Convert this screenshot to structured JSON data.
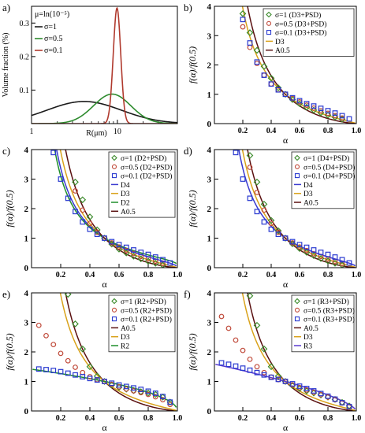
{
  "figure": {
    "panels": [
      {
        "id": "a",
        "label": "a)",
        "xlabel": "R(μm)",
        "ylabel": "Volume fraction (%)",
        "xticks": [
          "1",
          "10"
        ],
        "yticks": [
          "0.1",
          "0.2",
          "0.3"
        ],
        "legend_title": "μ=ln(10⁻⁵)"
      },
      {
        "id": "b",
        "label": "b)",
        "xlabel": "α",
        "ylabel": "f(α)/f(0.5)"
      },
      {
        "id": "c",
        "label": "c)",
        "xlabel": "α",
        "ylabel": "f(α)/f(0.5)"
      },
      {
        "id": "d",
        "label": "d)",
        "xlabel": "α",
        "ylabel": "f(α)/f(0.5)"
      },
      {
        "id": "e",
        "label": "e)",
        "xlabel": "α",
        "ylabel": "f(α)/f(0.5)"
      },
      {
        "id": "f",
        "label": "f)",
        "xlabel": "α",
        "ylabel": "f(α)/f(0.5)"
      }
    ],
    "alpha_ticks": [
      "0.2",
      "0.4",
      "0.6",
      "0.8",
      "1.0"
    ],
    "f_ticks": [
      "0",
      "1",
      "2",
      "3",
      "4"
    ]
  },
  "chart_data": [
    {
      "panel": "a",
      "type": "line",
      "xscale": "log",
      "xlim": [
        1,
        50
      ],
      "ylim": [
        0,
        0.35
      ],
      "legend_title": "μ=ln(10⁻⁵)",
      "series": [
        {
          "name": "σ=1",
          "color": "#1a1a1a",
          "peak_x": 4.1,
          "peak_y": 0.066,
          "sigma": 1
        },
        {
          "name": "σ=0.5",
          "color": "#2e8b2e",
          "peak_x": 8.7,
          "peak_y": 0.088,
          "sigma": 0.5
        },
        {
          "name": "σ=0.1",
          "color": "#b03a2e",
          "peak_x": 9.9,
          "peak_y": 0.345,
          "sigma": 0.1
        }
      ]
    },
    {
      "panel": "b",
      "type": "scatter",
      "xlim": [
        0,
        1
      ],
      "ylim": [
        0,
        4
      ],
      "series": [
        {
          "name": "σ=1 (D3+PSD)",
          "kind": "scatter",
          "marker": "diamond",
          "color": "#3a8a2a",
          "x": [
            0.2,
            0.25,
            0.3,
            0.35,
            0.4,
            0.45,
            0.5,
            0.55,
            0.6,
            0.65,
            0.7,
            0.75,
            0.8,
            0.85,
            0.9
          ],
          "y": [
            3.75,
            3.1,
            2.5,
            1.95,
            1.55,
            1.22,
            1.0,
            0.82,
            0.68,
            0.56,
            0.46,
            0.37,
            0.29,
            0.22,
            0.15
          ]
        },
        {
          "name": "σ=0.5 (D3+PSD)",
          "kind": "scatter",
          "marker": "circle",
          "color": "#c04a3a",
          "x": [
            0.2,
            0.25,
            0.3,
            0.35,
            0.4,
            0.45,
            0.5,
            0.55,
            0.6,
            0.65,
            0.7,
            0.75,
            0.8,
            0.85,
            0.9
          ],
          "y": [
            3.3,
            2.6,
            2.05,
            1.65,
            1.35,
            1.15,
            1.0,
            0.86,
            0.74,
            0.63,
            0.53,
            0.44,
            0.35,
            0.27,
            0.19
          ]
        },
        {
          "name": "σ=0.1 (D3+PSD)",
          "kind": "scatter",
          "marker": "square",
          "color": "#2a3ad0",
          "x": [
            0.2,
            0.25,
            0.3,
            0.35,
            0.4,
            0.45,
            0.5,
            0.55,
            0.6,
            0.65,
            0.7,
            0.75,
            0.8,
            0.85,
            0.9,
            0.95
          ],
          "y": [
            3.55,
            2.75,
            2.1,
            1.65,
            1.35,
            1.15,
            1.0,
            0.88,
            0.78,
            0.68,
            0.6,
            0.52,
            0.44,
            0.36,
            0.27,
            0.16
          ]
        },
        {
          "name": "D3",
          "kind": "line",
          "model": "D3",
          "color": "#d9a21b"
        },
        {
          "name": "A0.5",
          "kind": "line",
          "model": "A0.5",
          "color": "#5a1010"
        }
      ]
    },
    {
      "panel": "c",
      "type": "scatter",
      "xlim": [
        0,
        1
      ],
      "ylim": [
        0,
        4
      ],
      "series": [
        {
          "name": "σ=1 (D2+PSD)",
          "kind": "scatter",
          "marker": "diamond",
          "color": "#3a8a2a",
          "x": [
            0.3,
            0.35,
            0.4,
            0.45,
            0.5,
            0.55,
            0.6,
            0.65,
            0.7,
            0.75,
            0.8,
            0.85,
            0.9
          ],
          "y": [
            2.9,
            2.3,
            1.72,
            1.28,
            1.0,
            0.8,
            0.63,
            0.5,
            0.39,
            0.3,
            0.22,
            0.15,
            0.09
          ]
        },
        {
          "name": "σ=0.5 (D2+PSD)",
          "kind": "scatter",
          "marker": "circle",
          "color": "#c04a3a",
          "x": [
            0.3,
            0.35,
            0.4,
            0.45,
            0.5,
            0.55,
            0.6,
            0.65,
            0.7,
            0.75,
            0.8,
            0.85,
            0.9
          ],
          "y": [
            2.6,
            1.95,
            1.5,
            1.2,
            1.0,
            0.84,
            0.7,
            0.58,
            0.48,
            0.38,
            0.3,
            0.22,
            0.14
          ]
        },
        {
          "name": "σ=0.1 (D2+PSD)",
          "kind": "scatter",
          "marker": "square",
          "color": "#2a3ad0",
          "x": [
            0.15,
            0.2,
            0.25,
            0.3,
            0.35,
            0.4,
            0.45,
            0.5,
            0.55,
            0.6,
            0.65,
            0.7,
            0.75,
            0.8,
            0.85,
            0.9,
            0.95
          ],
          "y": [
            3.9,
            3.0,
            2.35,
            1.9,
            1.55,
            1.3,
            1.13,
            1.0,
            0.88,
            0.78,
            0.69,
            0.6,
            0.52,
            0.45,
            0.36,
            0.27,
            0.16
          ]
        },
        {
          "name": "D4",
          "kind": "line",
          "model": "D4",
          "color": "#3a3ad0"
        },
        {
          "name": "D3",
          "kind": "line",
          "model": "D3",
          "color": "#d9a21b"
        },
        {
          "name": "D2",
          "kind": "line",
          "model": "D2",
          "color": "#1f8f2a"
        },
        {
          "name": "A0.5",
          "kind": "line",
          "model": "A0.5",
          "color": "#5a1010"
        }
      ]
    },
    {
      "panel": "d",
      "type": "scatter",
      "xlim": [
        0,
        1
      ],
      "ylim": [
        0,
        4
      ],
      "series": [
        {
          "name": "σ=1 (D4+PSD)",
          "kind": "scatter",
          "marker": "diamond",
          "color": "#3a8a2a",
          "x": [
            0.25,
            0.3,
            0.35,
            0.4,
            0.45,
            0.5,
            0.55,
            0.6,
            0.65,
            0.7,
            0.75,
            0.8,
            0.85,
            0.9
          ],
          "y": [
            3.8,
            2.9,
            2.15,
            1.6,
            1.25,
            1.0,
            0.81,
            0.65,
            0.52,
            0.41,
            0.31,
            0.23,
            0.15,
            0.09
          ]
        },
        {
          "name": "σ=0.5 (D4+PSD)",
          "kind": "scatter",
          "marker": "circle",
          "color": "#c04a3a",
          "x": [
            0.25,
            0.3,
            0.35,
            0.4,
            0.45,
            0.5,
            0.55,
            0.6,
            0.65,
            0.7,
            0.75,
            0.8,
            0.85,
            0.9
          ],
          "y": [
            3.4,
            2.55,
            1.95,
            1.5,
            1.2,
            1.0,
            0.84,
            0.7,
            0.58,
            0.47,
            0.38,
            0.29,
            0.21,
            0.13
          ]
        },
        {
          "name": "σ=0.1 (D4+PSD)",
          "kind": "scatter",
          "marker": "square",
          "color": "#2a3ad0",
          "x": [
            0.15,
            0.2,
            0.25,
            0.3,
            0.35,
            0.4,
            0.45,
            0.5,
            0.55,
            0.6,
            0.65,
            0.7,
            0.75,
            0.8,
            0.85,
            0.9,
            0.95
          ],
          "y": [
            3.9,
            3.0,
            2.35,
            1.9,
            1.55,
            1.3,
            1.13,
            1.0,
            0.88,
            0.78,
            0.69,
            0.6,
            0.52,
            0.45,
            0.36,
            0.27,
            0.16
          ]
        },
        {
          "name": "D4",
          "kind": "line",
          "model": "D4",
          "color": "#3a3ad0"
        },
        {
          "name": "D3",
          "kind": "line",
          "model": "D3",
          "color": "#d9a21b"
        },
        {
          "name": "A0.5",
          "kind": "line",
          "model": "A0.5",
          "color": "#5a1010"
        }
      ]
    },
    {
      "panel": "e",
      "type": "scatter",
      "xlim": [
        0,
        1
      ],
      "ylim": [
        0,
        4
      ],
      "series": [
        {
          "name": "σ=1 (R2+PSD)",
          "kind": "scatter",
          "marker": "diamond",
          "color": "#3a8a2a",
          "x": [
            0.25,
            0.3,
            0.35,
            0.4,
            0.45,
            0.5,
            0.55,
            0.6,
            0.65,
            0.7,
            0.75,
            0.8,
            0.85,
            0.9,
            0.95
          ],
          "y": [
            3.95,
            2.95,
            2.1,
            1.5,
            1.18,
            1.0,
            0.88,
            0.8,
            0.74,
            0.69,
            0.65,
            0.61,
            0.56,
            0.47,
            0.3
          ]
        },
        {
          "name": "σ=0.5 (R2+PSD)",
          "kind": "scatter",
          "marker": "circle",
          "color": "#c04a3a",
          "x": [
            0.05,
            0.1,
            0.15,
            0.2,
            0.25,
            0.3,
            0.35,
            0.4,
            0.45,
            0.5,
            0.55,
            0.6,
            0.65,
            0.7,
            0.75,
            0.8,
            0.85,
            0.9,
            0.95
          ],
          "y": [
            2.9,
            2.55,
            2.25,
            1.95,
            1.7,
            1.48,
            1.3,
            1.16,
            1.06,
            1.0,
            0.9,
            0.82,
            0.74,
            0.68,
            0.62,
            0.56,
            0.48,
            0.38,
            0.22
          ]
        },
        {
          "name": "σ=0.1 (R2+PSD)",
          "kind": "scatter",
          "marker": "square",
          "color": "#2a3ad0",
          "x": [
            0.05,
            0.1,
            0.15,
            0.2,
            0.25,
            0.3,
            0.35,
            0.4,
            0.45,
            0.5,
            0.55,
            0.6,
            0.65,
            0.7,
            0.75,
            0.8,
            0.85,
            0.9,
            0.95
          ],
          "y": [
            1.42,
            1.4,
            1.37,
            1.33,
            1.28,
            1.22,
            1.16,
            1.1,
            1.05,
            1.0,
            0.94,
            0.88,
            0.83,
            0.78,
            0.73,
            0.67,
            0.6,
            0.49,
            0.3
          ]
        },
        {
          "name": "A0.5",
          "kind": "line",
          "model": "A0.5",
          "color": "#5a1010"
        },
        {
          "name": "D3",
          "kind": "line",
          "model": "D3",
          "color": "#d9a21b"
        },
        {
          "name": "R2",
          "kind": "line",
          "model": "R2",
          "color": "#1f8f2a"
        }
      ]
    },
    {
      "panel": "f",
      "type": "scatter",
      "xlim": [
        0,
        1
      ],
      "ylim": [
        0,
        4
      ],
      "series": [
        {
          "name": "σ=1 (R3+PSD)",
          "kind": "scatter",
          "marker": "diamond",
          "color": "#3a8a2a",
          "x": [
            0.25,
            0.3,
            0.35,
            0.4,
            0.45,
            0.5,
            0.55,
            0.6,
            0.65,
            0.7,
            0.75,
            0.8,
            0.85,
            0.9,
            0.95
          ],
          "y": [
            3.9,
            2.9,
            2.1,
            1.5,
            1.18,
            1.0,
            0.86,
            0.76,
            0.68,
            0.61,
            0.54,
            0.47,
            0.39,
            0.29,
            0.17
          ]
        },
        {
          "name": "σ=0.5 (R3+PSD)",
          "kind": "scatter",
          "marker": "circle",
          "color": "#c04a3a",
          "x": [
            0.05,
            0.1,
            0.15,
            0.2,
            0.25,
            0.3,
            0.35,
            0.4,
            0.45,
            0.5,
            0.55,
            0.6,
            0.65,
            0.7,
            0.75,
            0.8,
            0.85,
            0.9,
            0.95
          ],
          "y": [
            3.2,
            2.8,
            2.4,
            2.05,
            1.75,
            1.5,
            1.3,
            1.15,
            1.06,
            1.0,
            0.88,
            0.79,
            0.71,
            0.63,
            0.55,
            0.47,
            0.38,
            0.27,
            0.14
          ]
        },
        {
          "name": "σ=0.1 (R3+PSD)",
          "kind": "scatter",
          "marker": "square",
          "color": "#2a3ad0",
          "x": [
            0.05,
            0.1,
            0.15,
            0.2,
            0.25,
            0.3,
            0.35,
            0.4,
            0.45,
            0.5,
            0.55,
            0.6,
            0.65,
            0.7,
            0.75,
            0.8,
            0.85,
            0.9,
            0.95
          ],
          "y": [
            1.63,
            1.58,
            1.52,
            1.45,
            1.38,
            1.3,
            1.22,
            1.14,
            1.07,
            1.0,
            0.92,
            0.84,
            0.76,
            0.68,
            0.59,
            0.5,
            0.4,
            0.28,
            0.15
          ]
        },
        {
          "name": "A0.5",
          "kind": "line",
          "model": "A0.5",
          "color": "#5a1010"
        },
        {
          "name": "D3",
          "kind": "line",
          "model": "D3",
          "color": "#d9a21b"
        },
        {
          "name": "R3",
          "kind": "line",
          "model": "R3",
          "color": "#5a3ad0"
        }
      ]
    }
  ]
}
